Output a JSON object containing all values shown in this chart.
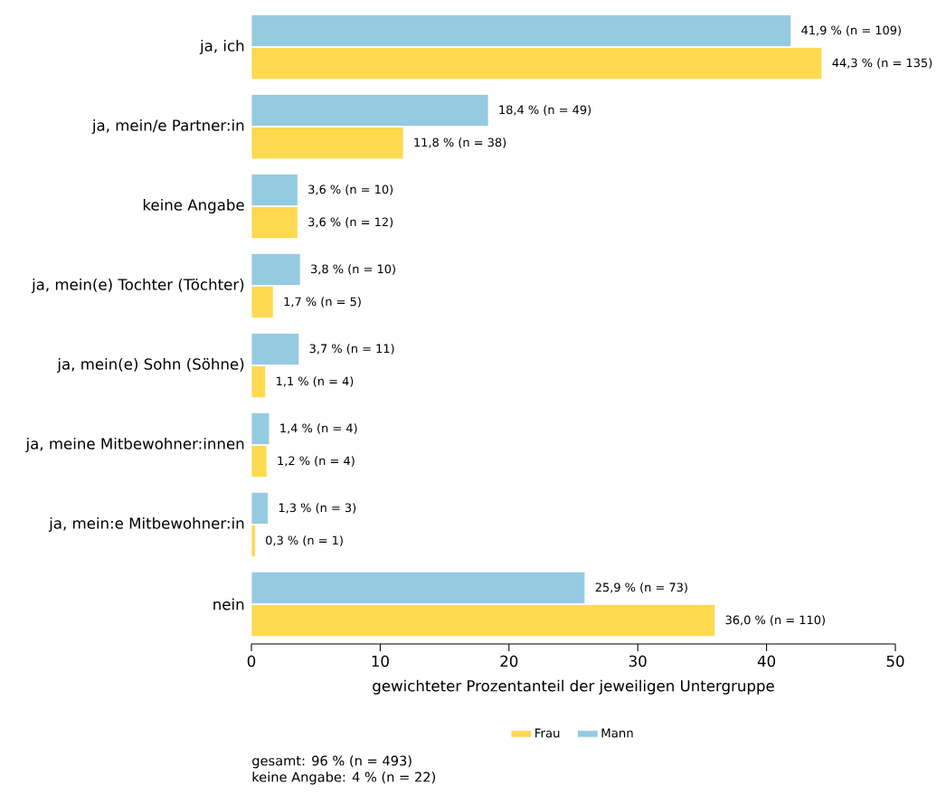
{
  "chart_data": {
    "type": "bar",
    "orientation": "horizontal",
    "categories": [
      "ja, ich",
      "ja, mein/e Partner:in",
      "keine Angabe",
      "ja, mein(e) Tochter (Töchter)",
      "ja, mein(e) Sohn (Söhne)",
      "ja, meine Mitbewohner:innen",
      "ja, mein:e Mitbewohner:in",
      "nein"
    ],
    "series": [
      {
        "name": "Frau",
        "color": "#ffd94f",
        "values": [
          44.3,
          11.8,
          3.6,
          1.7,
          1.1,
          1.2,
          0.3,
          36.0
        ],
        "value_labels": [
          "44,3 % (n = 135)",
          "11,8 % (n = 38)",
          "3,6 % (n = 12)",
          "1,7 % (n = 5)",
          "1,1 % (n = 4)",
          "1,2 % (n = 4)",
          "0,3 % (n = 1)",
          "36,0 % (n = 110)"
        ]
      },
      {
        "name": "Mann",
        "color": "#95cbe0",
        "values": [
          41.9,
          18.4,
          3.6,
          3.8,
          3.7,
          1.4,
          1.3,
          25.9
        ],
        "value_labels": [
          "41,9 % (n = 109)",
          "18,4 % (n = 49)",
          "3,6 % (n = 10)",
          "3,8 % (n = 10)",
          "3,7 % (n = 11)",
          "1,4 % (n = 4)",
          "1,3 % (n = 3)",
          "25,9 % (n = 73)"
        ]
      }
    ],
    "xlim": [
      0,
      50
    ],
    "xticks": [
      0,
      10,
      20,
      30,
      40,
      50
    ],
    "xlabel": "gewichteter Prozentanteil der jeweiligen Untergruppe",
    "legend": "bottom",
    "annotations": [
      "gesamt: 96 % (n = 493)",
      "keine Angabe: 4 % (n = 22)"
    ]
  }
}
